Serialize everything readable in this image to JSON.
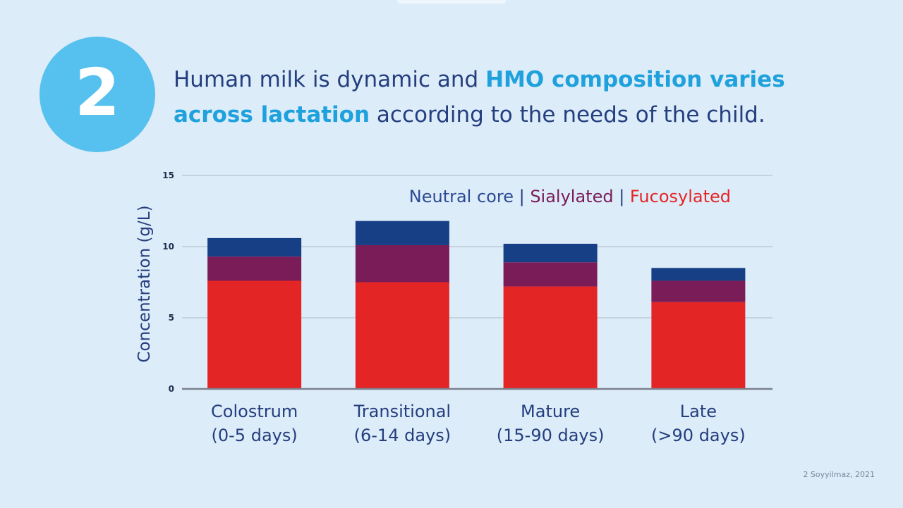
{
  "badge_number": "2",
  "headline": {
    "part1": "Human milk is dynamic and ",
    "highlight1": "HMO composition varies",
    "highlight2": "across lactation",
    "part2": " according to the needs of the child."
  },
  "source_note": "2 Soyyilmaz, 2021",
  "colors": {
    "neutral_core": "#173f86",
    "sialylated": "#7a1c57",
    "fucosylated": "#e42525",
    "headline_text": "#243e7e",
    "highlight": "#1ea1dc",
    "badge": "#56c1ee"
  },
  "chart_data": {
    "type": "bar",
    "stacked": true,
    "title": "",
    "ylabel": "Concentration (g/L)",
    "xlabel": "",
    "ylim": [
      0,
      15
    ],
    "yticks": [
      "0",
      "5",
      "10",
      "15"
    ],
    "grid": true,
    "legend_position": "top-right",
    "legend_separator": "|",
    "categories": [
      [
        "Colostrum",
        "(0-5 days)"
      ],
      [
        "Transitional",
        "(6-14 days)"
      ],
      [
        "Mature",
        "(15-90 days)"
      ],
      [
        "Late",
        "(>90 days)"
      ]
    ],
    "series": [
      {
        "name": "Fucosylated",
        "color": "#e42525",
        "values": [
          7.6,
          7.5,
          7.2,
          6.1
        ]
      },
      {
        "name": "Sialylated",
        "color": "#7a1c57",
        "values": [
          1.7,
          2.6,
          1.7,
          1.5
        ]
      },
      {
        "name": "Neutral core",
        "color": "#173f86",
        "values": [
          1.3,
          1.7,
          1.3,
          0.9
        ]
      }
    ],
    "legend_order": [
      "Neutral core",
      "Sialylated",
      "Fucosylated"
    ]
  }
}
